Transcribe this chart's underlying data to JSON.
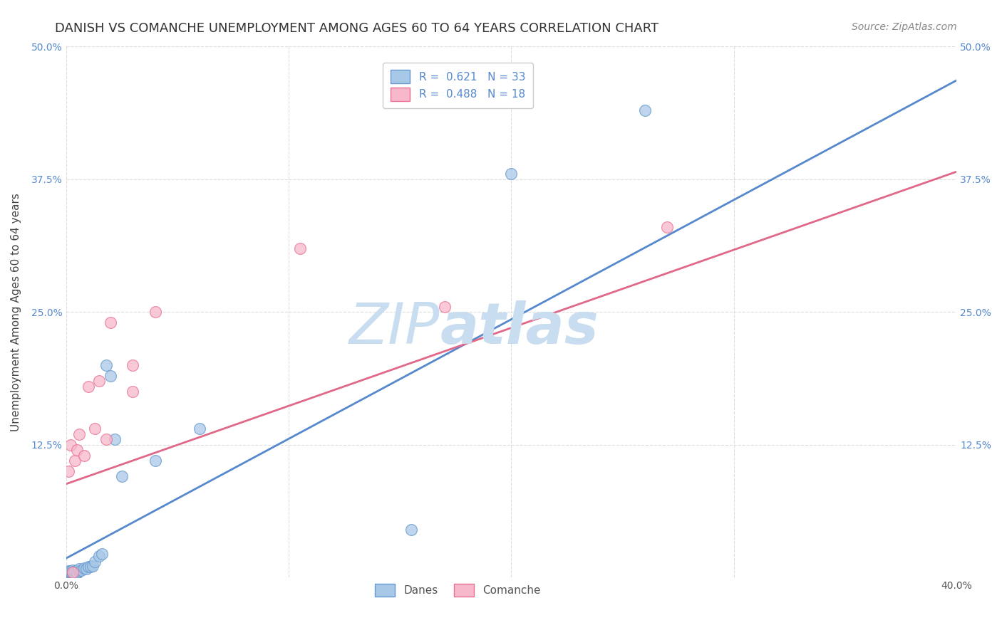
{
  "title": "DANISH VS COMANCHE UNEMPLOYMENT AMONG AGES 60 TO 64 YEARS CORRELATION CHART",
  "source": "Source: ZipAtlas.com",
  "ylabel": "Unemployment Among Ages 60 to 64 years",
  "xlim": [
    0.0,
    0.4
  ],
  "ylim": [
    0.0,
    0.5
  ],
  "ytick_positions": [
    0.0,
    0.125,
    0.25,
    0.375,
    0.5
  ],
  "ytick_labels": [
    "",
    "12.5%",
    "25.0%",
    "37.5%",
    "50.0%"
  ],
  "xtick_positions": [
    0.0,
    0.1,
    0.2,
    0.3,
    0.4
  ],
  "xtick_labels": [
    "0.0%",
    "",
    "",
    "",
    "40.0%"
  ],
  "danes_color": "#a8c8e8",
  "comanche_color": "#f8b8cc",
  "danes_edge_color": "#6699cc",
  "comanche_edge_color": "#e87090",
  "danes_line_color": "#5588cc",
  "comanche_line_color": "#e06888",
  "danes_intercept": 0.018,
  "danes_slope": 1.125,
  "comanche_intercept": 0.088,
  "comanche_slope": 0.735,
  "danes_x": [
    0.001,
    0.001,
    0.001,
    0.002,
    0.002,
    0.002,
    0.003,
    0.003,
    0.003,
    0.004,
    0.004,
    0.005,
    0.005,
    0.006,
    0.006,
    0.007,
    0.008,
    0.009,
    0.01,
    0.011,
    0.012,
    0.013,
    0.015,
    0.016,
    0.018,
    0.02,
    0.022,
    0.025,
    0.04,
    0.06,
    0.155,
    0.2,
    0.26
  ],
  "danes_y": [
    0.004,
    0.005,
    0.006,
    0.004,
    0.005,
    0.006,
    0.004,
    0.005,
    0.007,
    0.005,
    0.006,
    0.004,
    0.005,
    0.006,
    0.008,
    0.007,
    0.009,
    0.008,
    0.01,
    0.01,
    0.011,
    0.015,
    0.02,
    0.022,
    0.2,
    0.19,
    0.13,
    0.095,
    0.11,
    0.14,
    0.045,
    0.38,
    0.44
  ],
  "comanche_x": [
    0.001,
    0.002,
    0.003,
    0.004,
    0.005,
    0.006,
    0.008,
    0.01,
    0.013,
    0.015,
    0.018,
    0.02,
    0.03,
    0.03,
    0.04,
    0.105,
    0.17,
    0.27
  ],
  "comanche_y": [
    0.1,
    0.125,
    0.005,
    0.11,
    0.12,
    0.135,
    0.115,
    0.18,
    0.14,
    0.185,
    0.13,
    0.24,
    0.175,
    0.2,
    0.25,
    0.31,
    0.255,
    0.33
  ],
  "grid_color": "#dddddd",
  "background_color": "#ffffff",
  "title_fontsize": 13,
  "axis_label_fontsize": 11,
  "tick_fontsize": 10,
  "legend_fontsize": 11,
  "source_fontsize": 10,
  "legend_r_danes": "R =  0.621",
  "legend_n_danes": "N = 33",
  "legend_r_comanche": "R =  0.488",
  "legend_n_comanche": "N = 18",
  "tick_color": "#5588cc",
  "watermark_zip_color": "#c8ddf0",
  "watermark_atlas_color": "#c8ddf0"
}
